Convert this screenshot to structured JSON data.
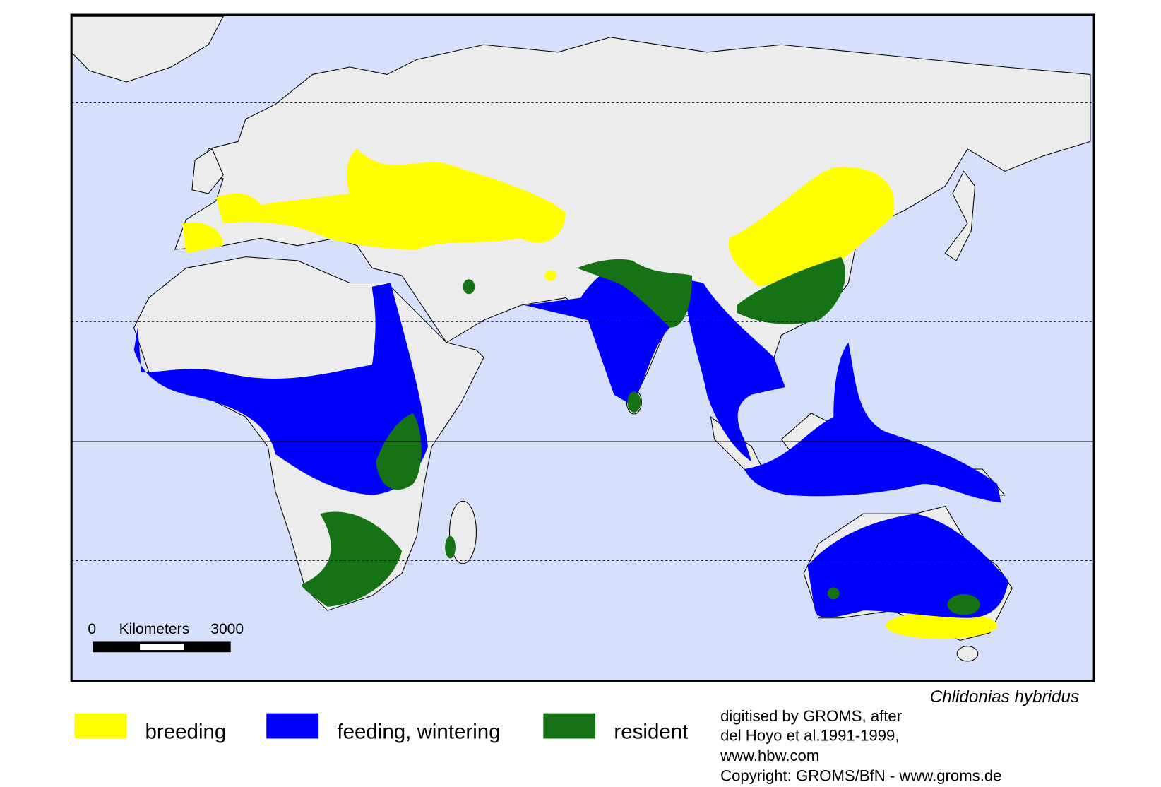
{
  "map": {
    "species": "Chlidonias hybridus",
    "legend": [
      {
        "label": "breeding",
        "color": "#ffff00"
      },
      {
        "label": "feeding, wintering",
        "color": "#0000ff"
      },
      {
        "label": "resident",
        "color": "#157315"
      }
    ],
    "scale_bar": {
      "start": "0",
      "unit": "Kilometers",
      "end": "3000"
    },
    "credits": [
      "digitised by GROMS, after",
      "del Hoyo et al.1991-1999,",
      "www.hbw.com",
      "Copyright: GROMS/BfN - www.groms.de"
    ]
  }
}
